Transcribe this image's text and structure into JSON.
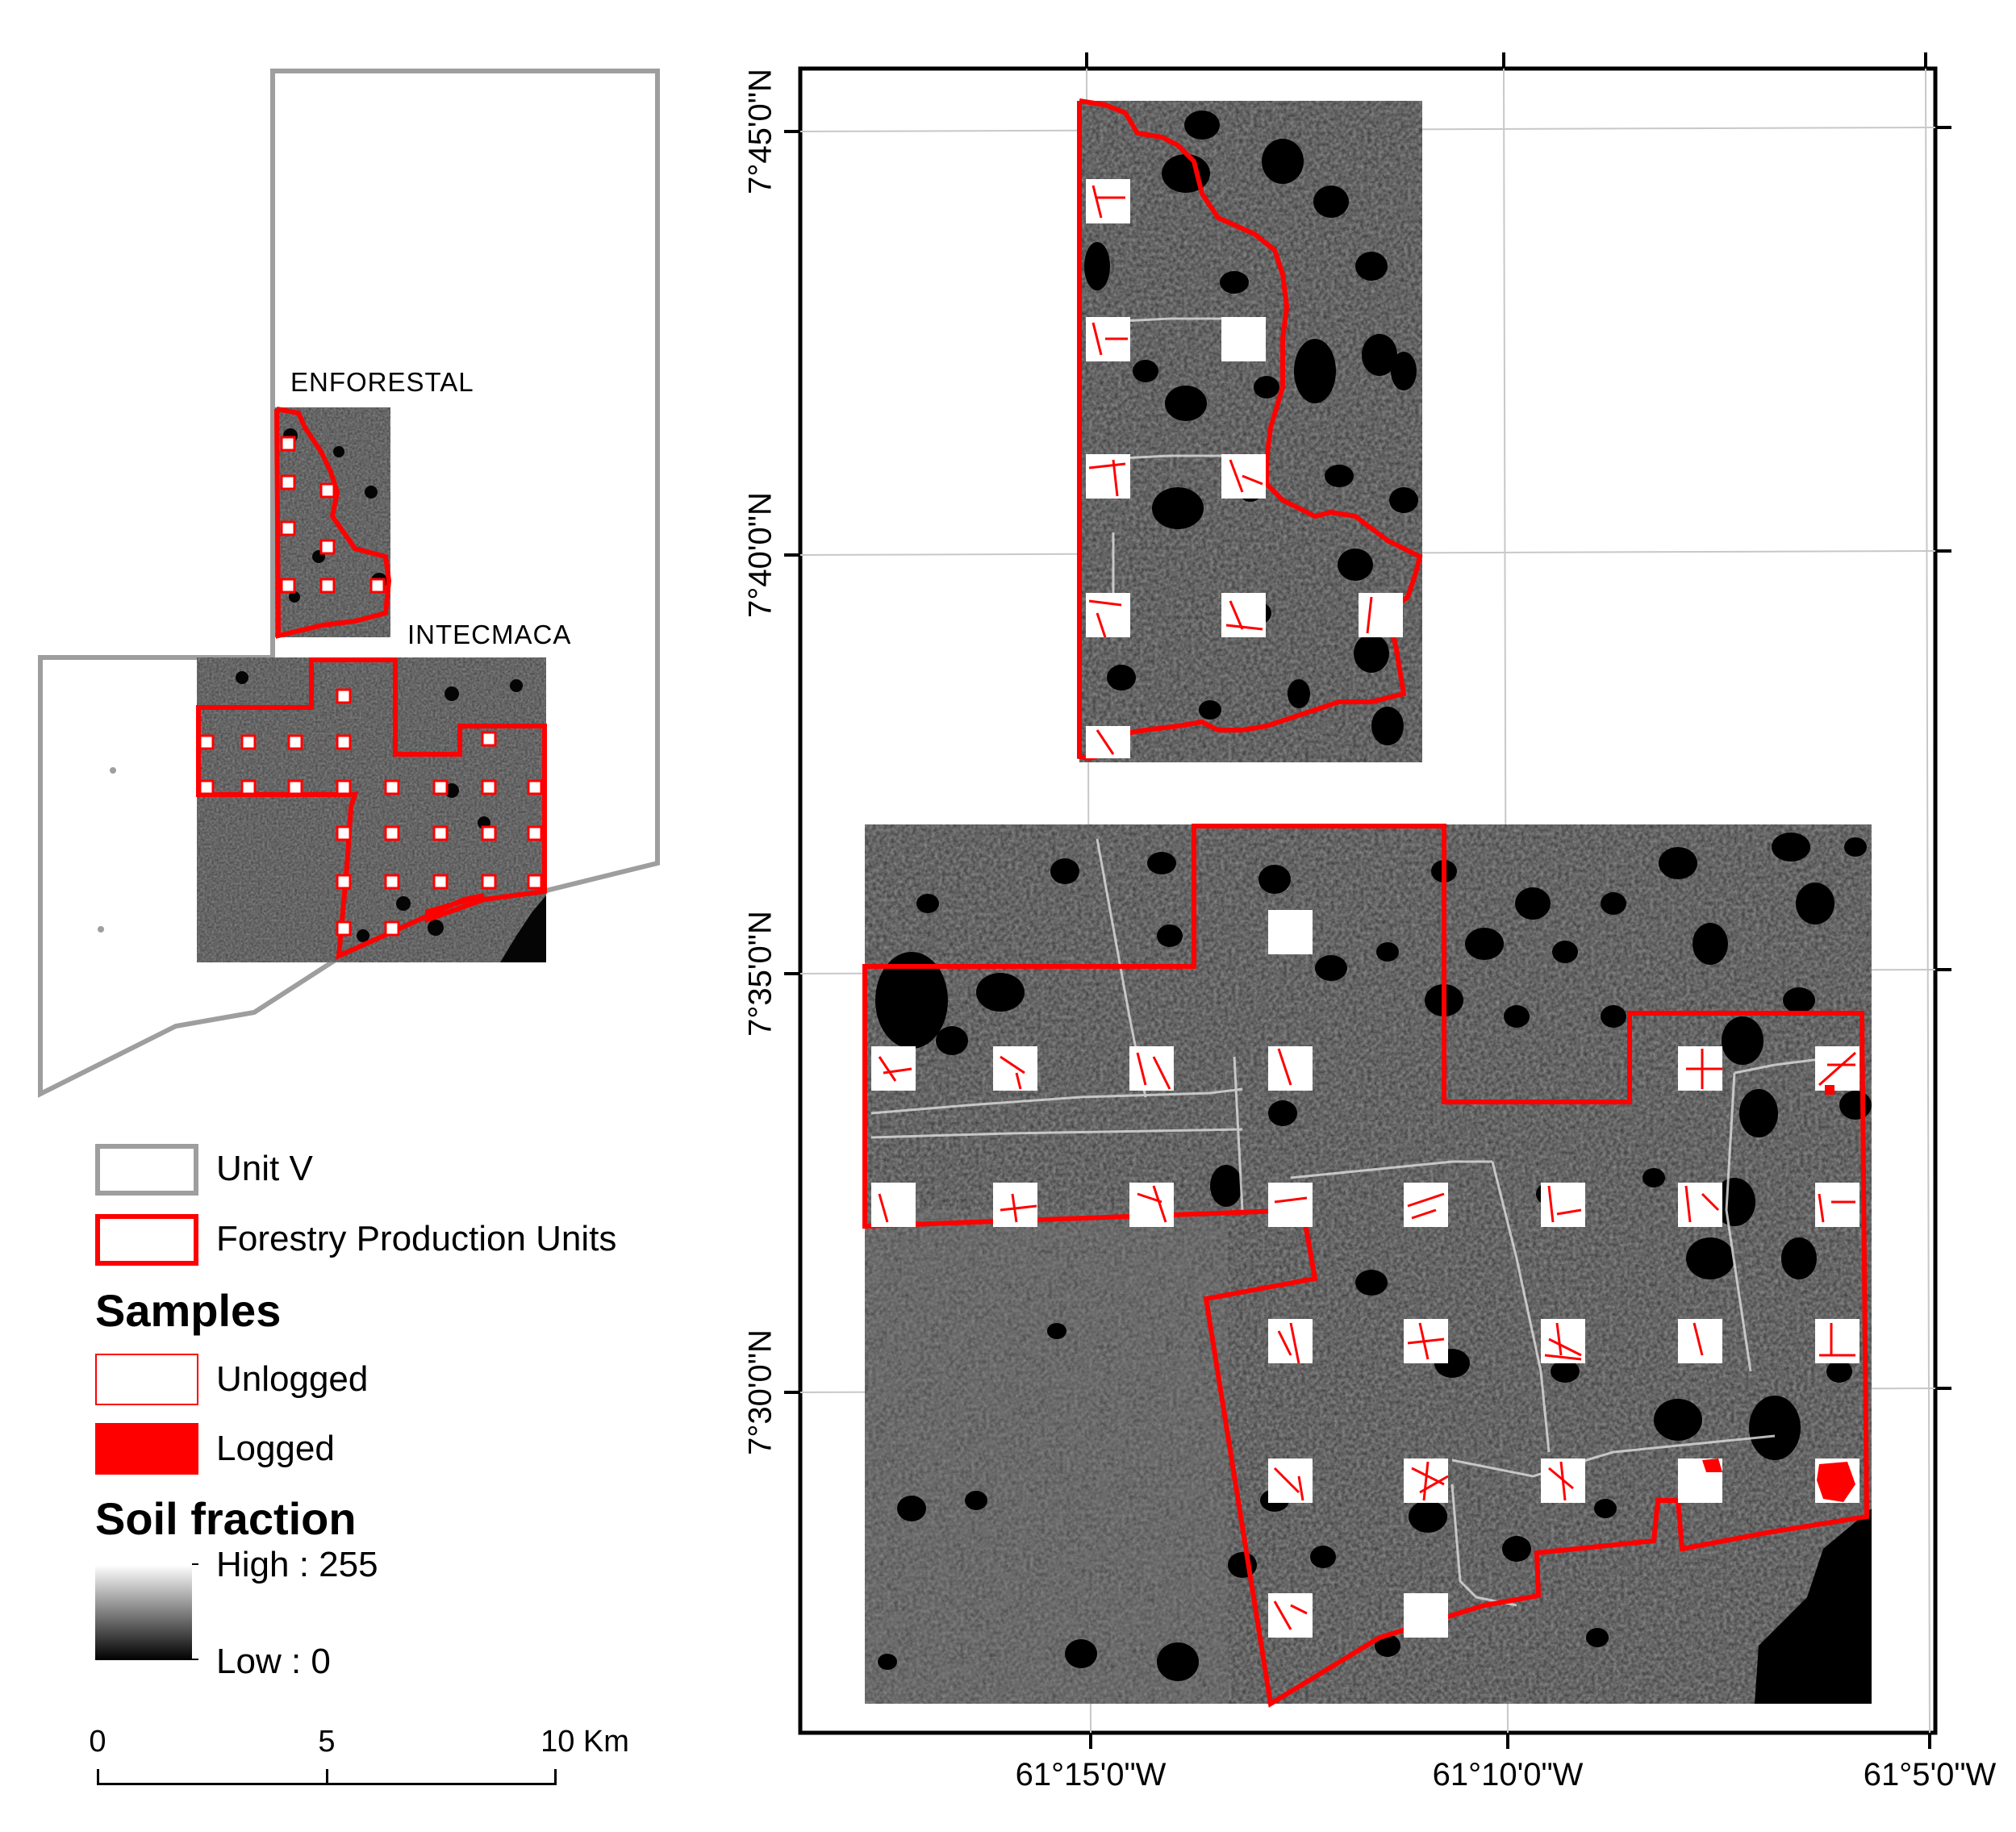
{
  "inset_map": {
    "enforestal_label": "ENFORESTAL",
    "intecmaca_label": "INTECMACA"
  },
  "main_map": {
    "lat_labels": [
      "7°45'0\"N",
      "7°40'0\"N",
      "7°35'0\"N",
      "7°30'0\"N"
    ],
    "lon_labels": [
      "61°15'0\"W",
      "61°10'0\"W",
      "61°5'0\"W"
    ]
  },
  "legend": {
    "unit_v": "Unit V",
    "fpu": "Forestry Production Units",
    "samples_heading": "Samples",
    "unlogged": "Unlogged",
    "logged": "Logged",
    "soil_heading": "Soil fraction",
    "high": "High : 255",
    "low": "Low : 0"
  },
  "scale_bar": {
    "labels": [
      "0",
      "5",
      "10 Km"
    ]
  },
  "colors": {
    "unit_boundary": "#9e9e9e",
    "fpu_boundary": "#ff0000",
    "logged_fill": "#ff0000",
    "sample_fill": "#ffffff"
  }
}
